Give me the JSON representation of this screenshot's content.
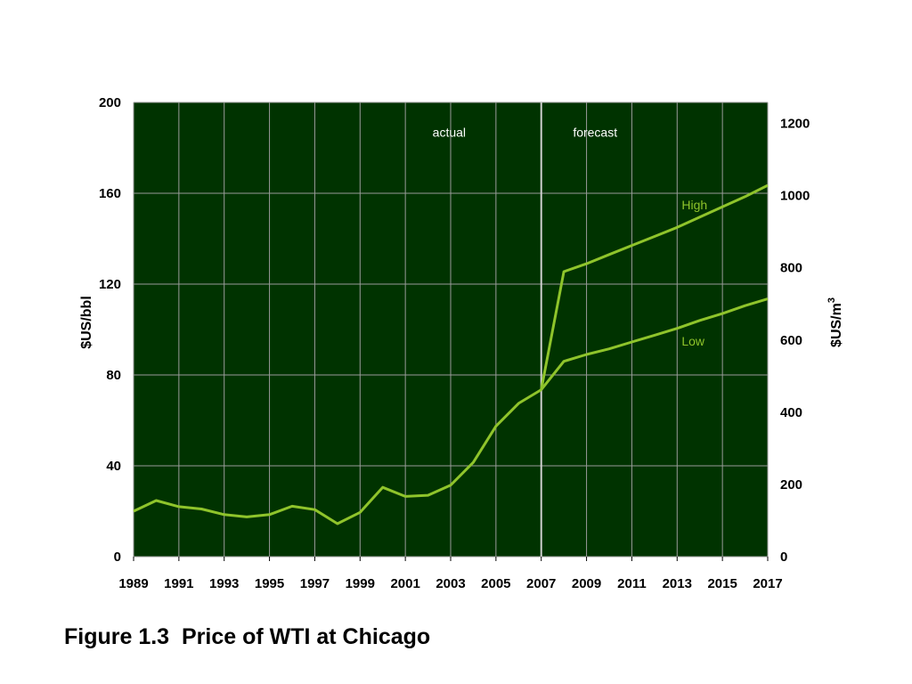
{
  "caption": "Figure 1.3  Price of WTI at Chicago",
  "colors": {
    "plot_background": "#003300",
    "grid": "#9a9a9a",
    "series_line": "#8fc42b",
    "divider": "#cfcfcf"
  },
  "chart_data": {
    "type": "line",
    "title": "",
    "xlabel": "",
    "ylabel": "$US/bbl",
    "ylabel_right": "$US/m",
    "ylabel_right_superscript": "3",
    "xlim": [
      1989,
      2017
    ],
    "ylim": [
      0,
      200
    ],
    "ylim_right": [
      0,
      1258
    ],
    "x_ticks": [
      1989,
      1991,
      1993,
      1995,
      1997,
      1999,
      2001,
      2003,
      2005,
      2007,
      2009,
      2011,
      2013,
      2015,
      2017
    ],
    "y_ticks": [
      0,
      40,
      80,
      120,
      160,
      200
    ],
    "y_ticks_right": [
      0,
      200,
      400,
      600,
      800,
      1000,
      1200
    ],
    "grid": true,
    "divider_x": 2007,
    "annotations": [
      {
        "text": "actual",
        "x": 2002.2,
        "y": 185
      },
      {
        "text": "forecast",
        "x": 2008.4,
        "y": 185
      }
    ],
    "series": [
      {
        "name": "",
        "role": "actual",
        "x": [
          1989,
          1990,
          1991,
          1992,
          1993,
          1994,
          1995,
          1996,
          1997,
          1998,
          1999,
          2000,
          2001,
          2002,
          2003,
          2004,
          2005,
          2006,
          2007
        ],
        "y": [
          20.0,
          24.7,
          22.0,
          21.0,
          18.5,
          17.5,
          18.5,
          22.2,
          20.7,
          14.5,
          19.5,
          30.5,
          26.5,
          27.0,
          31.5,
          41.5,
          57.5,
          67.5,
          73.5
        ]
      },
      {
        "name": "High",
        "label_x": 2013.2,
        "label_y": 153,
        "x": [
          2007,
          2008,
          2009,
          2010,
          2011,
          2012,
          2013,
          2014,
          2015,
          2016,
          2017
        ],
        "y": [
          73.5,
          125.5,
          129.0,
          133.0,
          137.0,
          141.0,
          145.0,
          149.5,
          154.0,
          158.5,
          163.5
        ]
      },
      {
        "name": "Low",
        "label_x": 2013.2,
        "label_y": 93,
        "x": [
          2007,
          2008,
          2009,
          2010,
          2011,
          2012,
          2013,
          2014,
          2015,
          2016,
          2017
        ],
        "y": [
          73.5,
          86.0,
          89.0,
          91.5,
          94.5,
          97.5,
          100.5,
          104.0,
          107.0,
          110.5,
          113.5
        ]
      }
    ]
  }
}
